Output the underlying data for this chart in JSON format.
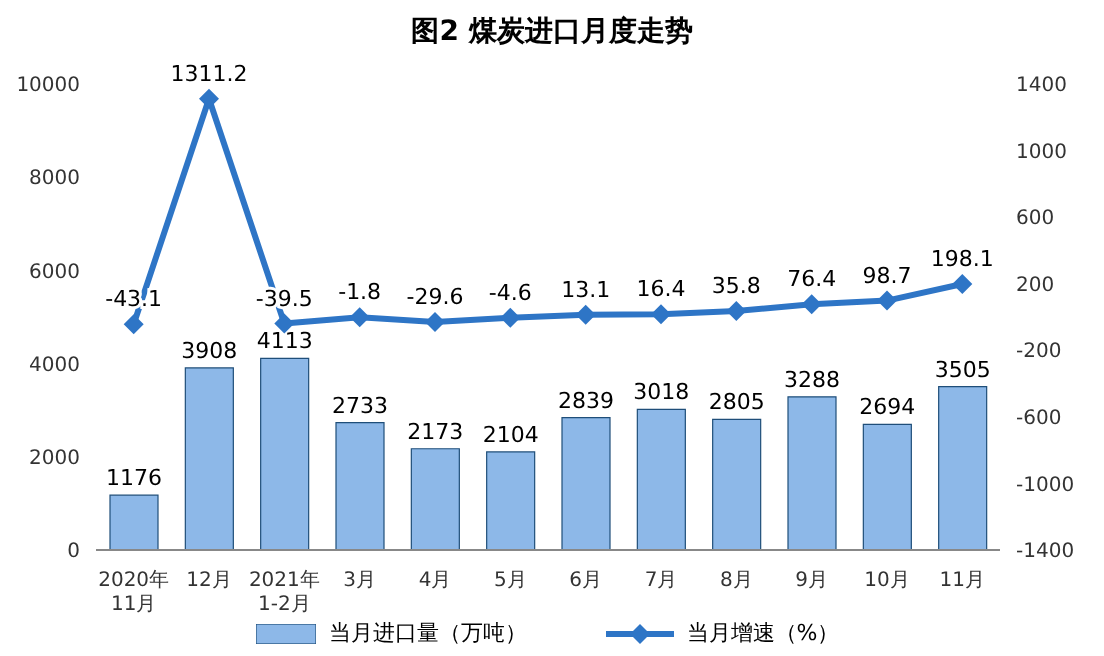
{
  "chart_data": {
    "type": "bar",
    "title": "图2  煤炭进口月度走势",
    "categories": [
      "2020年\n11月",
      "12月",
      "2021年\n1-2月",
      "3月",
      "4月",
      "5月",
      "6月",
      "7月",
      "8月",
      "9月",
      "10月",
      "11月"
    ],
    "series": [
      {
        "name": "当月进口量（万吨）",
        "color": "#8db8e8",
        "values": [
          1176,
          3908,
          4113,
          2733,
          2173,
          2104,
          2839,
          3018,
          2805,
          3288,
          2694,
          3505
        ]
      },
      {
        "name": "当月增速（%）",
        "type": "line",
        "axis": "y2",
        "color": "#2e75c6",
        "marker": "diamond",
        "values": [
          -43.1,
          1311.2,
          -39.5,
          -1.8,
          -29.6,
          -4.6,
          13.1,
          16.4,
          35.8,
          76.4,
          98.7,
          198.1
        ]
      }
    ],
    "ylim": [
      0,
      10000
    ],
    "yticks": [
      0,
      2000,
      4000,
      6000,
      8000,
      10000
    ],
    "y2lim": [
      -1400,
      1400
    ],
    "y2ticks": [
      -1400,
      -1000,
      -600,
      -200,
      200,
      600,
      1000,
      1400
    ],
    "data_labels": true,
    "legend": "bottom"
  }
}
